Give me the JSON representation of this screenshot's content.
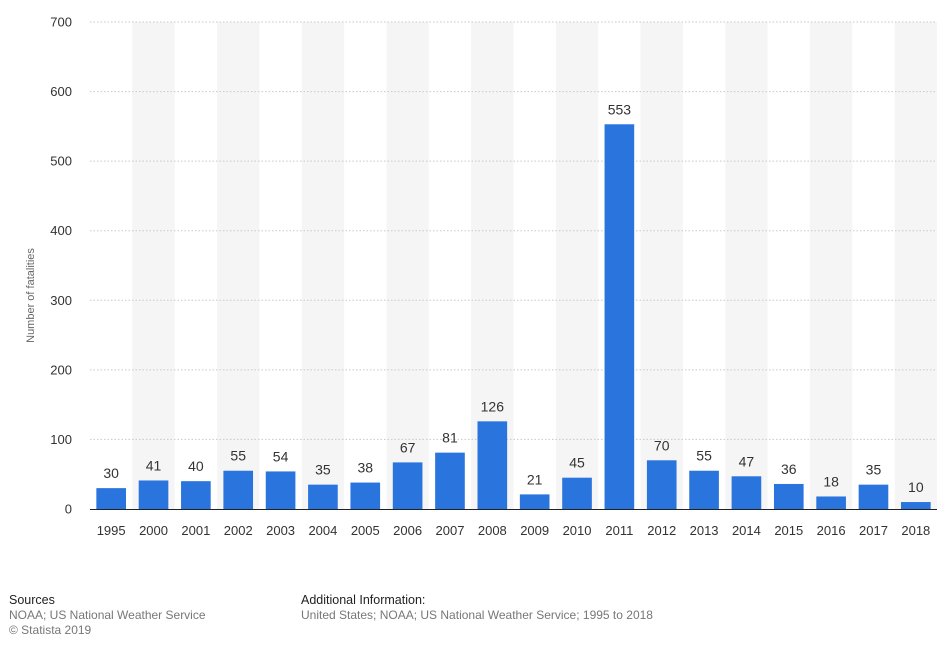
{
  "chart_data": {
    "type": "bar",
    "title": "",
    "xlabel": "",
    "ylabel": "Number of fatalities",
    "ylim": [
      0,
      700
    ],
    "yticks": [
      0,
      100,
      200,
      300,
      400,
      500,
      600,
      700
    ],
    "grid": true,
    "categories": [
      "1995",
      "2000",
      "2001",
      "2002",
      "2003",
      "2004",
      "2005",
      "2006",
      "2007",
      "2008",
      "2009",
      "2010",
      "2011",
      "2012",
      "2013",
      "2014",
      "2015",
      "2016",
      "2017",
      "2018"
    ],
    "values": [
      30,
      41,
      40,
      55,
      54,
      35,
      38,
      67,
      81,
      126,
      21,
      45,
      553,
      70,
      55,
      47,
      36,
      18,
      35,
      10
    ],
    "bar_color": "#2a74de",
    "band_color": "#f5f5f5",
    "grid_color": "#c8c8c8"
  },
  "footer": {
    "sources_heading": "Sources",
    "sources_line1": "NOAA; US National Weather Service",
    "sources_line2": "© Statista 2019",
    "additional_heading": "Additional Information:",
    "additional_text": "United States; NOAA; US National Weather Service; 1995 to 2018"
  }
}
